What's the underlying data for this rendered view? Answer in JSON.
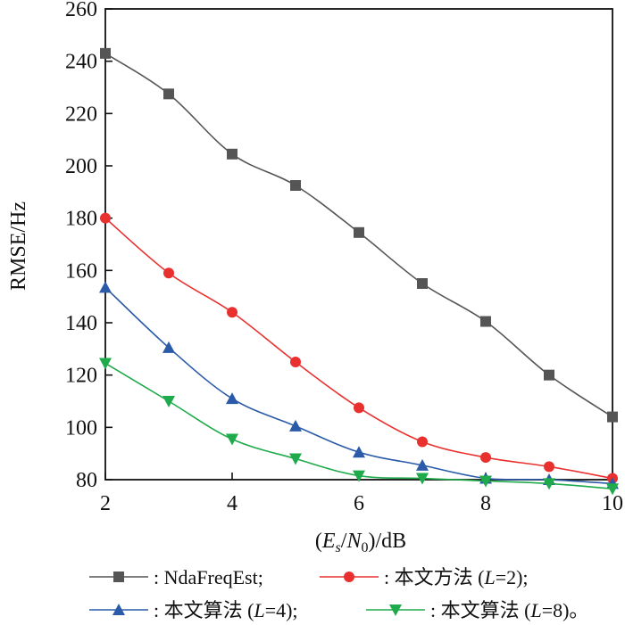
{
  "chart_data": {
    "type": "line",
    "x": [
      2,
      3,
      4,
      5,
      6,
      7,
      8,
      9,
      10
    ],
    "xlim": [
      2,
      10
    ],
    "ylim": [
      80,
      260
    ],
    "xticks": [
      2,
      4,
      6,
      8,
      10
    ],
    "yticks": [
      80,
      100,
      120,
      140,
      160,
      180,
      200,
      220,
      240,
      260
    ],
    "xlabel": {
      "open": "(",
      "var1": "E",
      "sub1": "s",
      "slash": "/",
      "var2": "N",
      "sub2": "0",
      "close": ")",
      "unit": "/dB"
    },
    "ylabel": "RMSE/Hz",
    "grid": false,
    "legend_position": "bottom",
    "series": [
      {
        "legend": {
          "prefix": ": NdaFreqEst;",
          "var": "",
          "suffix": ""
        },
        "color": "#555555",
        "marker": "square",
        "values": [
          243,
          227.5,
          204.5,
          192.5,
          174.5,
          155,
          140.5,
          120,
          104
        ]
      },
      {
        "legend": {
          "prefix": ": 本文方法 (",
          "var": "L",
          "suffix": "=2);"
        },
        "color": "#e8312f",
        "marker": "circle",
        "values": [
          180,
          159,
          144,
          125,
          107.5,
          94.5,
          88.5,
          85,
          80.5
        ]
      },
      {
        "legend": {
          "prefix": ": 本文算法 (",
          "var": "L",
          "suffix": "=4);"
        },
        "color": "#2a5aa8",
        "marker": "triangle-up",
        "values": [
          153.5,
          130.5,
          111,
          100.5,
          90.5,
          85.5,
          80.5,
          80,
          78.5
        ]
      },
      {
        "legend": {
          "prefix": ": 本文算法 (",
          "var": "L",
          "suffix": "=8)。"
        },
        "color": "#1faa4b",
        "marker": "triangle-down",
        "values": [
          124.5,
          110,
          95.5,
          88,
          81.5,
          80.5,
          79.5,
          78.5,
          76.5
        ]
      }
    ]
  }
}
